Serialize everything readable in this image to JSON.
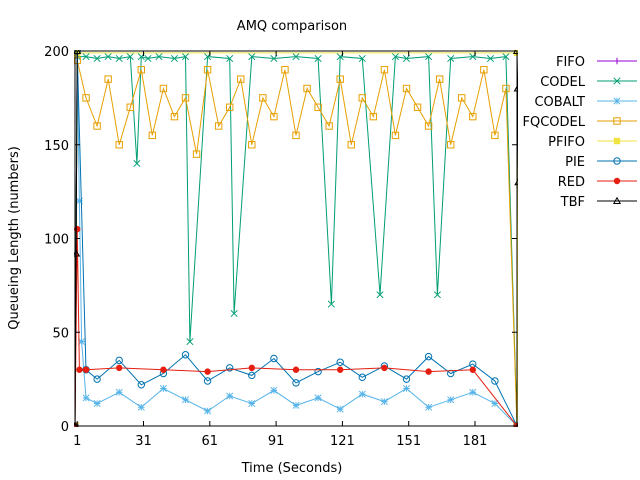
{
  "chart_data": {
    "type": "line",
    "title": "AMQ comparison",
    "xlabel": "Time (Seconds)",
    "ylabel": "Queueing Length (numbers)",
    "xlim": [
      0,
      200
    ],
    "ylim": [
      0,
      200
    ],
    "x_ticks": [
      1,
      31,
      61,
      91,
      121,
      151,
      181
    ],
    "y_ticks": [
      0,
      50,
      100,
      150,
      200
    ],
    "grid": false,
    "legend_position": "right",
    "series": [
      {
        "name": "FIFO",
        "color": "#9400d3",
        "marker": "plus",
        "x": [
          0,
          1,
          200,
          200.5
        ],
        "values": [
          0,
          200,
          200,
          200
        ]
      },
      {
        "name": "CODEL",
        "color": "#009e73",
        "marker": "x",
        "x": [
          0,
          1,
          5,
          10,
          15,
          20,
          25,
          28,
          30,
          33,
          38,
          45,
          50,
          52,
          60,
          70,
          72,
          80,
          90,
          100,
          110,
          116,
          120,
          130,
          138,
          145,
          150,
          160,
          164,
          170,
          180,
          188,
          195,
          200
        ],
        "values": [
          0,
          197,
          197,
          196,
          197,
          196,
          197,
          140,
          197,
          196,
          197,
          196,
          197,
          45,
          197,
          196,
          60,
          197,
          196,
          197,
          196,
          65,
          197,
          196,
          70,
          197,
          196,
          197,
          70,
          196,
          197,
          196,
          197,
          0
        ]
      },
      {
        "name": "COBALT",
        "color": "#56b4e9",
        "marker": "asterisk",
        "x": [
          0,
          1,
          2,
          3,
          5,
          10,
          20,
          30,
          40,
          50,
          60,
          70,
          80,
          90,
          100,
          110,
          120,
          130,
          140,
          150,
          160,
          170,
          180,
          190,
          200
        ],
        "values": [
          0,
          200,
          120,
          45,
          15,
          12,
          18,
          10,
          20,
          14,
          8,
          16,
          12,
          19,
          11,
          15,
          9,
          17,
          13,
          20,
          10,
          14,
          18,
          12,
          0
        ]
      },
      {
        "name": "FQCODEL",
        "color": "#e69f00",
        "marker": "square",
        "x": [
          0,
          1,
          5,
          10,
          15,
          20,
          25,
          30,
          35,
          40,
          45,
          50,
          55,
          60,
          65,
          70,
          75,
          80,
          85,
          90,
          95,
          100,
          105,
          110,
          115,
          120,
          125,
          130,
          135,
          140,
          145,
          150,
          155,
          160,
          165,
          170,
          175,
          180,
          185,
          190,
          195,
          200
        ],
        "values": [
          0,
          195,
          175,
          160,
          185,
          150,
          170,
          190,
          155,
          180,
          165,
          175,
          145,
          190,
          160,
          170,
          185,
          150,
          175,
          165,
          190,
          155,
          180,
          170,
          160,
          185,
          150,
          175,
          165,
          190,
          155,
          180,
          170,
          160,
          185,
          150,
          175,
          165,
          190,
          155,
          180,
          0
        ]
      },
      {
        "name": "PFIFO",
        "color": "#f0e442",
        "marker": "filled-square",
        "x": [
          0,
          1,
          200,
          200.5
        ],
        "values": [
          0,
          199,
          199,
          0
        ]
      },
      {
        "name": "PIE",
        "color": "#0072b2",
        "marker": "circle",
        "x": [
          0,
          1,
          5,
          10,
          20,
          30,
          40,
          50,
          60,
          70,
          80,
          90,
          100,
          110,
          120,
          130,
          140,
          150,
          160,
          170,
          180,
          190,
          200
        ],
        "values": [
          0,
          200,
          30,
          25,
          35,
          22,
          28,
          38,
          24,
          31,
          27,
          36,
          23,
          29,
          34,
          26,
          32,
          25,
          37,
          28,
          33,
          24,
          0
        ]
      },
      {
        "name": "RED",
        "color": "#e51e10",
        "marker": "filled-circle",
        "x": [
          0,
          1,
          2,
          5,
          20,
          40,
          60,
          80,
          100,
          120,
          140,
          160,
          180,
          200
        ],
        "values": [
          0,
          105,
          30,
          30,
          31,
          30,
          29,
          31,
          30,
          30,
          31,
          29,
          30,
          0
        ]
      },
      {
        "name": "TBF",
        "color": "#000000",
        "marker": "triangle",
        "x": [
          0,
          0.5,
          1,
          200,
          200.3,
          200.6,
          201
        ],
        "values": [
          0,
          92,
          200,
          200,
          180,
          130,
          0
        ]
      }
    ]
  }
}
